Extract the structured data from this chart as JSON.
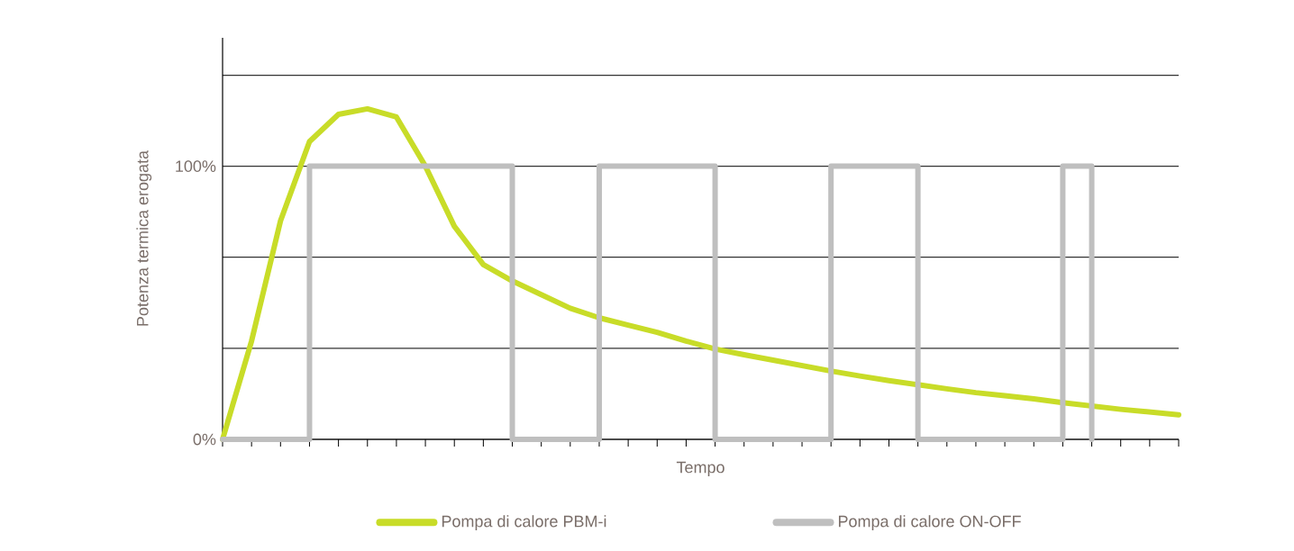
{
  "chart_data": {
    "type": "line",
    "xlabel": "Tempo",
    "ylabel": "Potenza termica erogata",
    "categories": [
      null,
      null,
      null,
      null,
      null,
      null,
      null,
      null,
      null,
      null,
      null,
      null,
      null,
      null,
      null,
      null,
      null,
      null,
      null,
      null,
      null,
      null,
      null,
      null,
      null,
      null,
      null,
      null,
      null,
      null,
      null,
      null,
      null,
      null
    ],
    "ylim": [
      0,
      147
    ],
    "yticks": [
      {
        "value": 0,
        "label": "0%"
      },
      {
        "value": 33.3,
        "label": null
      },
      {
        "value": 66.7,
        "label": null
      },
      {
        "value": 100,
        "label": "100%"
      },
      {
        "value": 133.3,
        "label": null
      }
    ],
    "tick_labels": "y",
    "grid": "y",
    "legend": "bottom",
    "series": [
      {
        "name": "Pompa di calore PBM-i",
        "color": "#c8dc28",
        "values": [
          0,
          36,
          80,
          109,
          119,
          121,
          118,
          100,
          78,
          64,
          58,
          53,
          48,
          44.5,
          41.8,
          39.2,
          36,
          33.1,
          31,
          29,
          27,
          25,
          23.2,
          21.5,
          20,
          18.5,
          17.1,
          16,
          14.8,
          13.4,
          12.2,
          11,
          10,
          9
        ]
      },
      {
        "name": "Pompa di calore ON-OFF",
        "type": "step",
        "color": "#bfbfbf",
        "values": [
          0,
          0,
          0,
          100,
          100,
          100,
          100,
          100,
          100,
          100,
          0,
          0,
          0,
          100,
          100,
          100,
          100,
          0,
          0,
          0,
          0,
          100,
          100,
          100,
          0,
          0,
          0,
          0,
          0,
          100,
          0,
          null,
          null,
          null
        ]
      }
    ]
  }
}
